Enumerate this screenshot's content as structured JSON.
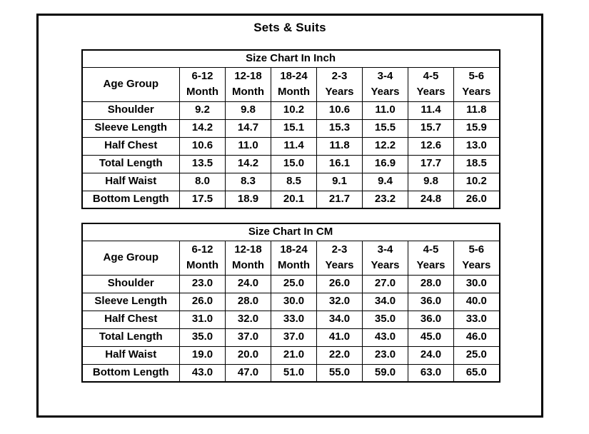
{
  "title": "Sets & Suits",
  "tables": [
    {
      "title": "Size Chart In Inch",
      "row_header_label": "Age Group",
      "columns": [
        {
          "range": "6-12",
          "unit": "Month"
        },
        {
          "range": "12-18",
          "unit": "Month"
        },
        {
          "range": "18-24",
          "unit": "Month"
        },
        {
          "range": "2-3",
          "unit": "Years"
        },
        {
          "range": "3-4",
          "unit": "Years"
        },
        {
          "range": "4-5",
          "unit": "Years"
        },
        {
          "range": "5-6",
          "unit": "Years"
        }
      ],
      "rows": [
        {
          "label": "Shoulder",
          "values": [
            "9.2",
            "9.8",
            "10.2",
            "10.6",
            "11.0",
            "11.4",
            "11.8"
          ]
        },
        {
          "label": "Sleeve Length",
          "values": [
            "14.2",
            "14.7",
            "15.1",
            "15.3",
            "15.5",
            "15.7",
            "15.9"
          ]
        },
        {
          "label": "Half Chest",
          "values": [
            "10.6",
            "11.0",
            "11.4",
            "11.8",
            "12.2",
            "12.6",
            "13.0"
          ]
        },
        {
          "label": "Total Length",
          "values": [
            "13.5",
            "14.2",
            "15.0",
            "16.1",
            "16.9",
            "17.7",
            "18.5"
          ]
        },
        {
          "label": "Half Waist",
          "values": [
            "8.0",
            "8.3",
            "8.5",
            "9.1",
            "9.4",
            "9.8",
            "10.2"
          ]
        },
        {
          "label": "Bottom Length",
          "values": [
            "17.5",
            "18.9",
            "20.1",
            "21.7",
            "23.2",
            "24.8",
            "26.0"
          ]
        }
      ]
    },
    {
      "title": "Size Chart In CM",
      "row_header_label": "Age Group",
      "columns": [
        {
          "range": "6-12",
          "unit": "Month"
        },
        {
          "range": "12-18",
          "unit": "Month"
        },
        {
          "range": "18-24",
          "unit": "Month"
        },
        {
          "range": "2-3",
          "unit": "Years"
        },
        {
          "range": "3-4",
          "unit": "Years"
        },
        {
          "range": "4-5",
          "unit": "Years"
        },
        {
          "range": "5-6",
          "unit": "Years"
        }
      ],
      "rows": [
        {
          "label": "Shoulder",
          "values": [
            "23.0",
            "24.0",
            "25.0",
            "26.0",
            "27.0",
            "28.0",
            "30.0"
          ]
        },
        {
          "label": "Sleeve Length",
          "values": [
            "26.0",
            "28.0",
            "30.0",
            "32.0",
            "34.0",
            "36.0",
            "40.0"
          ]
        },
        {
          "label": "Half Chest",
          "values": [
            "31.0",
            "32.0",
            "33.0",
            "34.0",
            "35.0",
            "36.0",
            "33.0"
          ]
        },
        {
          "label": "Total Length",
          "values": [
            "35.0",
            "37.0",
            "37.0",
            "41.0",
            "43.0",
            "45.0",
            "46.0"
          ]
        },
        {
          "label": "Half Waist",
          "values": [
            "19.0",
            "20.0",
            "21.0",
            "22.0",
            "23.0",
            "24.0",
            "25.0"
          ]
        },
        {
          "label": "Bottom Length",
          "values": [
            "43.0",
            "47.0",
            "51.0",
            "55.0",
            "59.0",
            "63.0",
            "65.0"
          ]
        }
      ]
    }
  ]
}
